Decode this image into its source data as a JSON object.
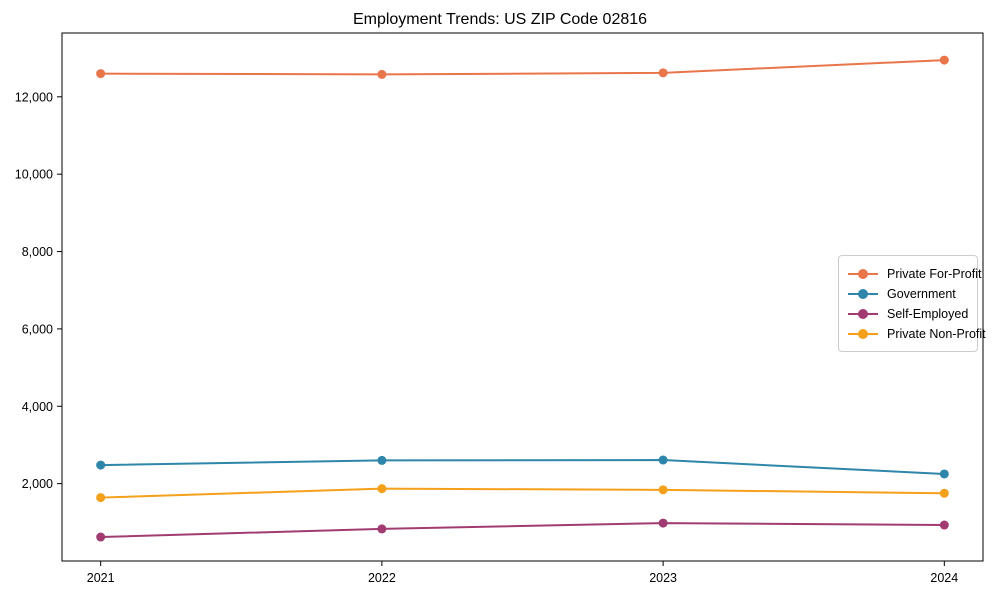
{
  "chart_data": {
    "type": "line",
    "title": "Employment Trends: US ZIP Code 02816",
    "categories": [
      "2021",
      "2022",
      "2023",
      "2024"
    ],
    "series": [
      {
        "name": "Private For-Profit",
        "color": "#E8764A",
        "values": [
          12600,
          12580,
          12620,
          12950
        ]
      },
      {
        "name": "Government",
        "color": "#2E86AB",
        "values": [
          2480,
          2600,
          2610,
          2250
        ]
      },
      {
        "name": "Self-Employed",
        "color": "#A23B72",
        "values": [
          620,
          830,
          980,
          930
        ]
      },
      {
        "name": "Private Non-Profit",
        "color": "#F5A01A",
        "values": [
          1640,
          1870,
          1840,
          1750
        ]
      }
    ],
    "xlabel": "",
    "ylabel": "",
    "ylim": [
      0,
      13650
    ],
    "yticks": [
      2000,
      4000,
      6000,
      8000,
      10000,
      12000
    ],
    "grid": false,
    "legend_position": "center-right",
    "marker": "circle",
    "axis_color": "#000000",
    "background_color": "#ffffff"
  }
}
